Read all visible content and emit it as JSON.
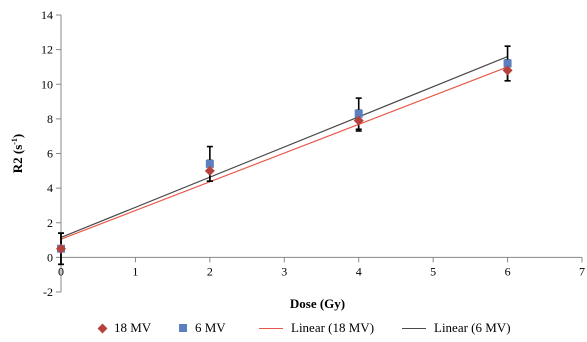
{
  "chart_data": {
    "type": "scatter",
    "xlabel": "Dose (Gy)",
    "ylabel_main": "R2 (s",
    "ylabel_sup": "-1",
    "ylabel_close": ")",
    "xlim": [
      0,
      7
    ],
    "ylim": [
      -2,
      14
    ],
    "x_ticks": [
      "0",
      "1",
      "2",
      "3",
      "4",
      "5",
      "6",
      "7"
    ],
    "y_ticks": [
      "-2",
      "0",
      "2",
      "4",
      "6",
      "8",
      "10",
      "12",
      "14"
    ],
    "grid": false,
    "legend_position": "bottom",
    "series": [
      {
        "name": "18 MV",
        "marker": "diamond",
        "color": "#b5423c",
        "x": [
          0,
          2,
          4,
          6
        ],
        "y": [
          0.5,
          5.0,
          7.9,
          10.8
        ],
        "err": [
          0.9,
          0.6,
          0.6,
          0.6
        ]
      },
      {
        "name": "6 MV",
        "marker": "square",
        "color": "#5b7fbf",
        "x": [
          0,
          2,
          4,
          6
        ],
        "y": [
          0.5,
          5.4,
          8.3,
          11.2
        ],
        "err": [
          0.9,
          1.0,
          0.9,
          1.0
        ]
      }
    ],
    "fits": [
      {
        "name": "Linear (18 MV)",
        "color": "#e8584a",
        "x": [
          0,
          6
        ],
        "y": [
          1.05,
          11.0
        ]
      },
      {
        "name": "Linear (6 MV)",
        "color": "#4a4a4a",
        "x": [
          0,
          6
        ],
        "y": [
          1.15,
          11.6
        ]
      }
    ]
  }
}
